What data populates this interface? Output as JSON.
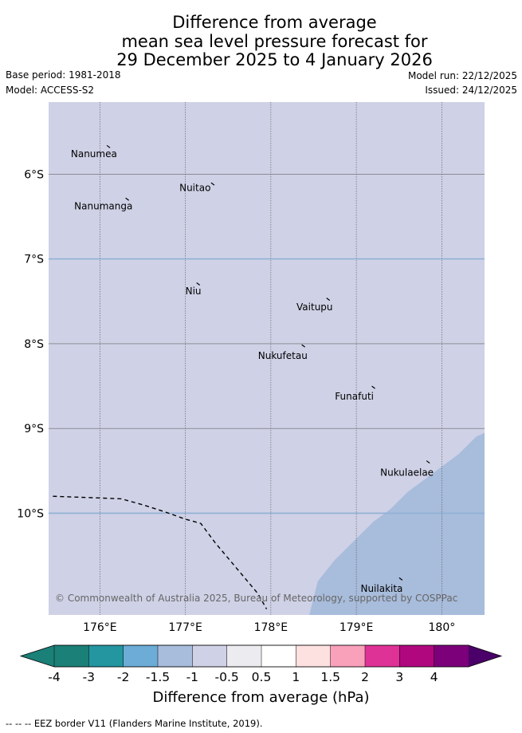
{
  "title_lines": [
    "Difference from average",
    "mean sea level pressure forecast for",
    "29 December 2025 to 4 January 2026"
  ],
  "base_period": "Base period: 1981-2018",
  "model": "Model: ACCESS-S2",
  "model_run": "Model run: 22/12/2025",
  "issued": "Issued: 24/12/2025",
  "map": {
    "lon_range": [
      175.4,
      180.5
    ],
    "lat_range": [
      -11.2,
      -5.15
    ],
    "lon_ticks": [
      {
        "value": 176,
        "label": "176°E"
      },
      {
        "value": 177,
        "label": "177°E"
      },
      {
        "value": 178,
        "label": "178°E"
      },
      {
        "value": 179,
        "label": "179°E"
      },
      {
        "value": 180,
        "label": "180°"
      }
    ],
    "lat_ticks": [
      {
        "value": -6,
        "label": "6°S"
      },
      {
        "value": -7,
        "label": "7°S"
      },
      {
        "value": -8,
        "label": "8°S"
      },
      {
        "value": -9,
        "label": "9°S"
      },
      {
        "value": -10,
        "label": "10°S"
      }
    ],
    "background_class_color": "#cfd1e6",
    "lower_class_color": "#a8bcdb",
    "lower_class_region": [
      [
        178.45,
        -11.2
      ],
      [
        178.55,
        -10.8
      ],
      [
        178.75,
        -10.55
      ],
      [
        178.95,
        -10.35
      ],
      [
        179.2,
        -10.1
      ],
      [
        179.4,
        -9.95
      ],
      [
        179.6,
        -9.75
      ],
      [
        179.8,
        -9.6
      ],
      [
        180.0,
        -9.45
      ],
      [
        180.2,
        -9.3
      ],
      [
        180.4,
        -9.1
      ],
      [
        180.5,
        -9.05
      ],
      [
        180.5,
        -11.2
      ]
    ],
    "eez_border": [
      [
        175.45,
        -9.8
      ],
      [
        176.0,
        -9.82
      ],
      [
        176.25,
        -9.83
      ],
      [
        176.5,
        -9.9
      ],
      [
        176.75,
        -9.98
      ],
      [
        177.0,
        -10.07
      ],
      [
        177.18,
        -10.12
      ],
      [
        177.35,
        -10.35
      ],
      [
        177.6,
        -10.65
      ],
      [
        177.85,
        -10.95
      ],
      [
        177.95,
        -11.13
      ]
    ],
    "places": [
      {
        "name": "Nanumea",
        "lon": 176.1,
        "lat": -5.68,
        "label_lon": 175.66,
        "label_lat": -5.76
      },
      {
        "name": "Nuitao",
        "lon": 177.32,
        "lat": -6.12,
        "label_lon": 176.93,
        "label_lat": -6.16
      },
      {
        "name": "Nanumanga",
        "lon": 176.32,
        "lat": -6.3,
        "label_lon": 175.7,
        "label_lat": -6.38
      },
      {
        "name": "Niu",
        "lon": 177.15,
        "lat": -7.3,
        "label_lon": 177.0,
        "label_lat": -7.38
      },
      {
        "name": "Vaitupu",
        "lon": 178.67,
        "lat": -7.48,
        "label_lon": 178.3,
        "label_lat": -7.57
      },
      {
        "name": "Nukufetau",
        "lon": 178.38,
        "lat": -8.03,
        "label_lon": 177.85,
        "label_lat": -8.14
      },
      {
        "name": "Funafuti",
        "lon": 179.2,
        "lat": -8.52,
        "label_lon": 178.75,
        "label_lat": -8.62
      },
      {
        "name": "Nukulaelae",
        "lon": 179.84,
        "lat": -9.4,
        "label_lon": 179.28,
        "label_lat": -9.52
      },
      {
        "name": "Nuilakita",
        "lon": 179.52,
        "lat": -10.78,
        "label_lon": 179.05,
        "label_lat": -10.89
      }
    ],
    "copyright": "© Commonwealth of Australia 2025, Bureau of Meteorology, supported by COSPPac"
  },
  "colorbar": {
    "labels": [
      "-4",
      "-3",
      "-2",
      "-1.5",
      "-1",
      "-0.5",
      "0.5",
      "1",
      "1.5",
      "2",
      "3",
      "4"
    ],
    "under_color": "#1b8077",
    "over_color": "#4a0068",
    "segment_colors": [
      "#1b8077",
      "#2396a0",
      "#6cacd6",
      "#a8bcdb",
      "#cfd1e6",
      "#ececf0",
      "#ffffff",
      "#fde0e0",
      "#f9a0ba",
      "#df3296",
      "#b0077f",
      "#7b007a"
    ],
    "title": "Difference from average (hPa)"
  },
  "footer": "--  --  -- EEZ border V11 (Flanders Marine Institute, 2019)."
}
